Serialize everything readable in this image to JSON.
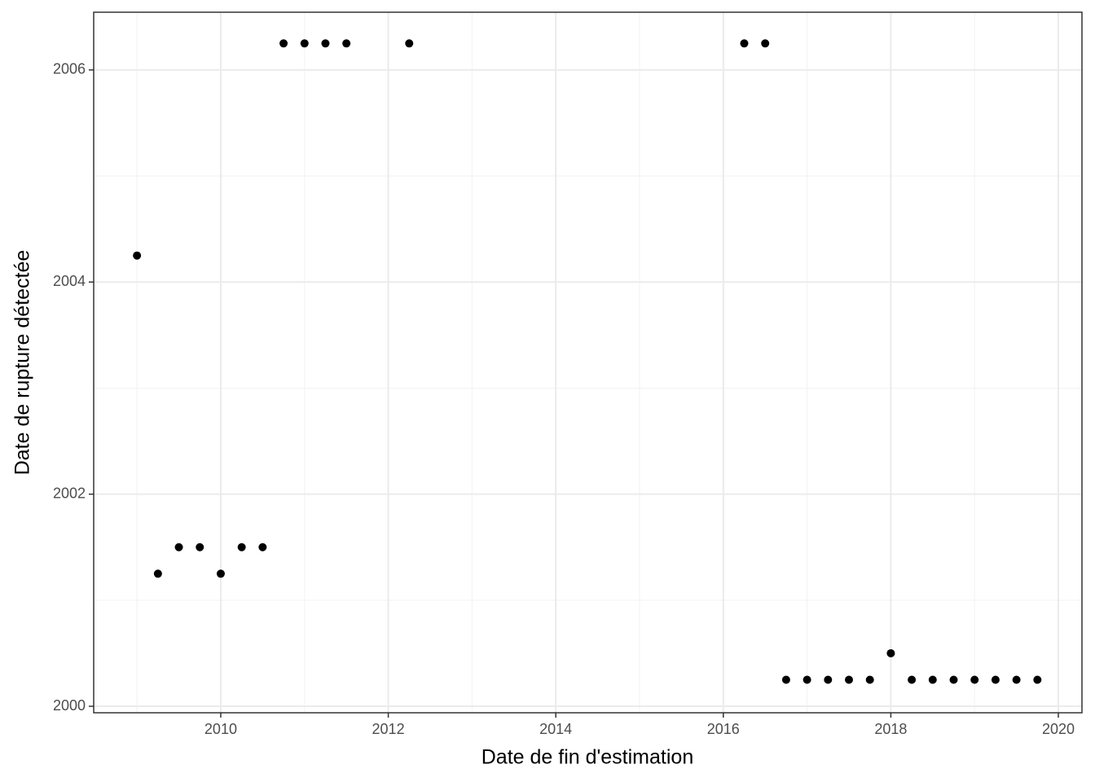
{
  "chart_data": {
    "type": "scatter",
    "x_label": "Date de fin d'estimation",
    "y_label": "Date de rupture détectée",
    "x": [
      2009,
      2009.25,
      2009.5,
      2009.75,
      2010,
      2010.25,
      2010.5,
      2010.75,
      2011,
      2011.25,
      2011.5,
      2012.25,
      2016.25,
      2016.5,
      2016.75,
      2017,
      2017.25,
      2017.5,
      2017.75,
      2018,
      2018.25,
      2018.5,
      2018.75,
      2019,
      2019.25,
      2019.5,
      2019.75
    ],
    "values": [
      2004.25,
      2001.25,
      2001.5,
      2001.5,
      2001.25,
      2001.5,
      2001.5,
      2006.25,
      2006.25,
      2006.25,
      2006.25,
      2006.25,
      2006.25,
      2006.25,
      2000.25,
      2000.25,
      2000.25,
      2000.25,
      2000.25,
      2000.5,
      2000.25,
      2000.25,
      2000.25,
      2000.25,
      2000.25,
      2000.25,
      2000.25
    ],
    "color": "#000000",
    "xlim": [
      2008.483,
      2020.282
    ],
    "ylim": [
      1999.939,
      2006.544
    ],
    "xticks": [
      2010,
      2012,
      2014,
      2016,
      2018,
      2020
    ],
    "yticks": [
      2000,
      2002,
      2004,
      2006
    ],
    "x_minor_ticks": [
      2009,
      2011,
      2013,
      2015,
      2017,
      2019
    ],
    "y_minor_ticks": [
      2001,
      2003,
      2005
    ],
    "grid": true
  }
}
